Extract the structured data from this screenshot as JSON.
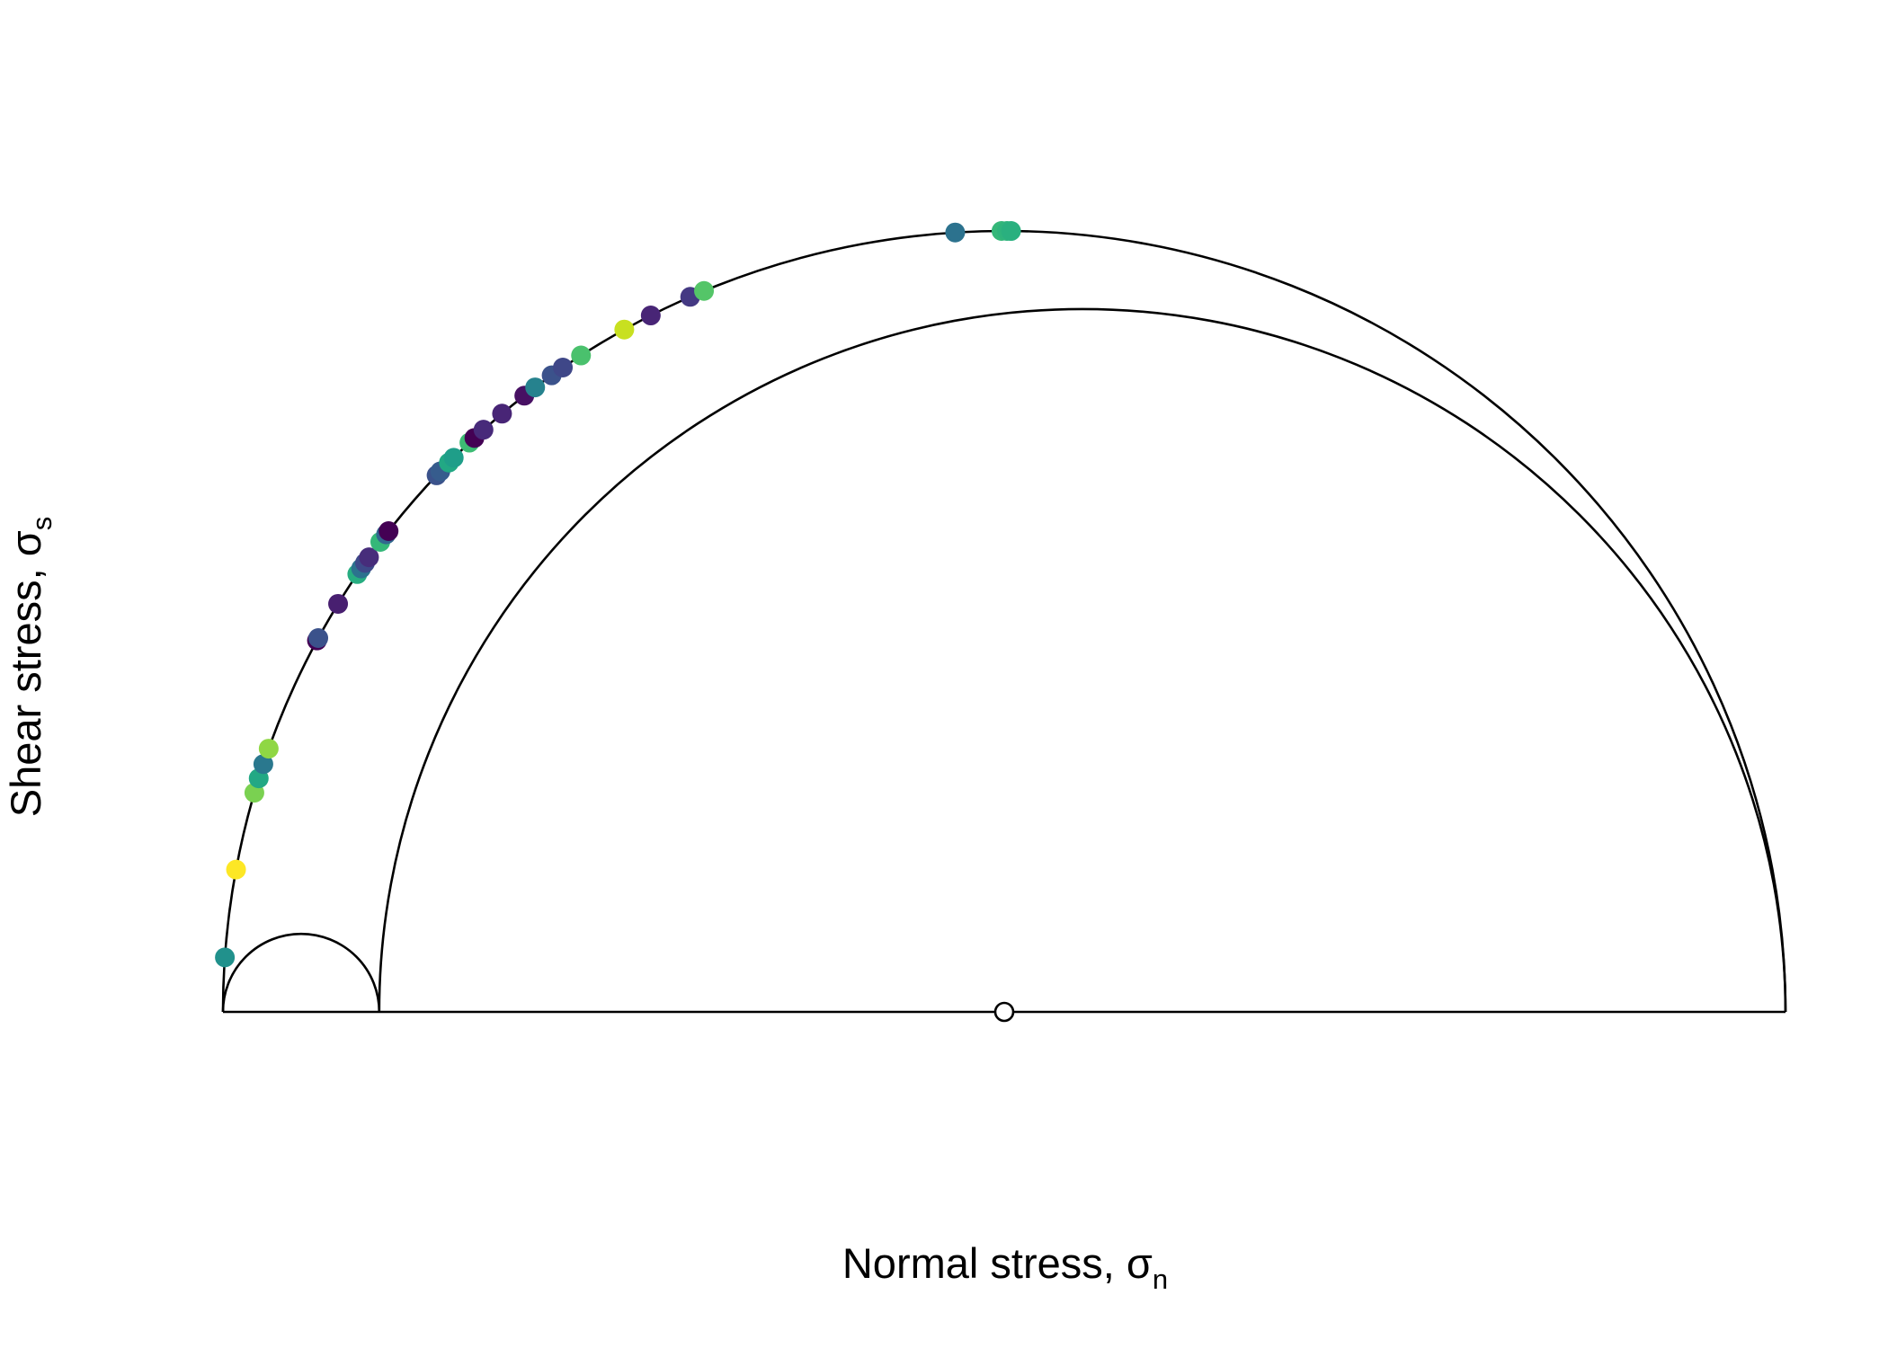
{
  "chart_data": {
    "type": "scatter",
    "title": "",
    "xlabel": {
      "text": "Normal stress, ",
      "symbol": "σ",
      "subscript": "n"
    },
    "ylabel": {
      "text": "Shear stress, ",
      "symbol": "σ",
      "subscript": "s"
    },
    "grid": false,
    "legend": "none",
    "sigma": {
      "sigma1": 1.0,
      "sigma2": 0.1,
      "sigma3": 0.0
    },
    "mean_stress_marker": {
      "x": 0.5,
      "y": 0.0
    },
    "points": [
      {
        "theta_deg": 176.0,
        "color": "#21918c"
      },
      {
        "theta_deg": 169.5,
        "color": "#fde725"
      },
      {
        "theta_deg": 163.7,
        "color": "#7ad151"
      },
      {
        "theta_deg": 162.6,
        "color": "#22a884"
      },
      {
        "theta_deg": 161.5,
        "color": "#2a788e"
      },
      {
        "theta_deg": 160.3,
        "color": "#8fd744"
      },
      {
        "theta_deg": 151.6,
        "color": "#440154"
      },
      {
        "theta_deg": 151.4,
        "color": "#3b528b"
      },
      {
        "theta_deg": 148.5,
        "color": "#481f70"
      },
      {
        "theta_deg": 145.9,
        "color": "#27ad81"
      },
      {
        "theta_deg": 145.4,
        "color": "#2c728e"
      },
      {
        "theta_deg": 144.9,
        "color": "#3e4989"
      },
      {
        "theta_deg": 144.4,
        "color": "#472d7b"
      },
      {
        "theta_deg": 143.0,
        "color": "#35b779"
      },
      {
        "theta_deg": 142.3,
        "color": "#31688e"
      },
      {
        "theta_deg": 142.0,
        "color": "#440154"
      },
      {
        "theta_deg": 136.6,
        "color": "#3b528b"
      },
      {
        "theta_deg": 136.2,
        "color": "#365c8d"
      },
      {
        "theta_deg": 135.3,
        "color": "#22a884"
      },
      {
        "theta_deg": 134.8,
        "color": "#1f9e89"
      },
      {
        "theta_deg": 133.2,
        "color": "#3dbc74"
      },
      {
        "theta_deg": 132.7,
        "color": "#440154"
      },
      {
        "theta_deg": 131.8,
        "color": "#472a7a"
      },
      {
        "theta_deg": 130.0,
        "color": "#482576"
      },
      {
        "theta_deg": 127.9,
        "color": "#471063"
      },
      {
        "theta_deg": 126.9,
        "color": "#26828e"
      },
      {
        "theta_deg": 125.4,
        "color": "#3b528b"
      },
      {
        "theta_deg": 124.4,
        "color": "#3f4788"
      },
      {
        "theta_deg": 122.8,
        "color": "#4ac16d"
      },
      {
        "theta_deg": 119.1,
        "color": "#c8e020"
      },
      {
        "theta_deg": 116.9,
        "color": "#482576"
      },
      {
        "theta_deg": 113.7,
        "color": "#443983"
      },
      {
        "theta_deg": 112.6,
        "color": "#54c568"
      },
      {
        "theta_deg": 93.6,
        "color": "#2c728e"
      },
      {
        "theta_deg": 90.2,
        "color": "#35b779"
      },
      {
        "theta_deg": 89.8,
        "color": "#2fb47c"
      },
      {
        "theta_deg": 89.5,
        "color": "#2ab07f"
      }
    ]
  }
}
